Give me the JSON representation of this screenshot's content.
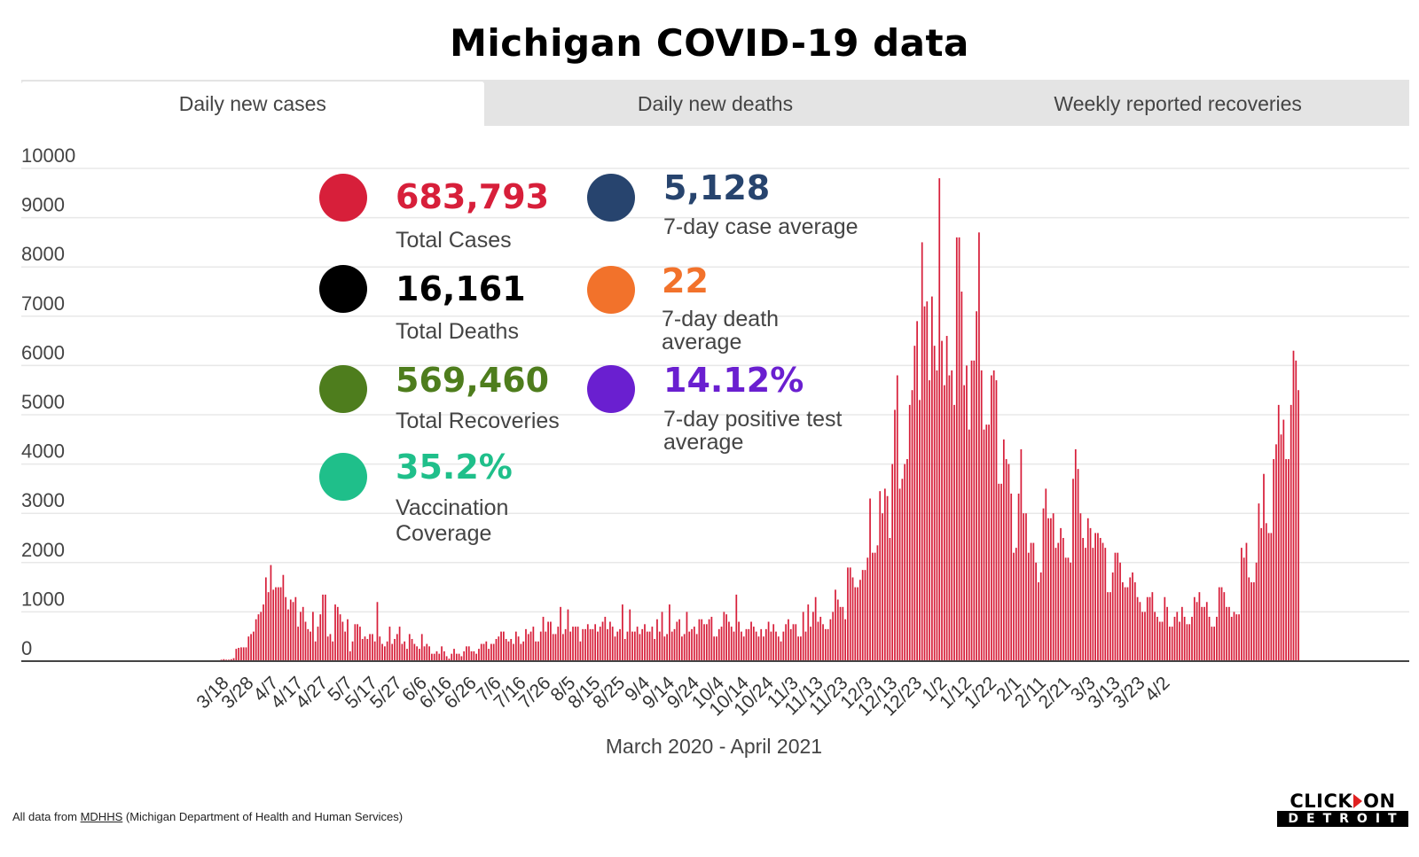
{
  "title": "Michigan COVID-19 data",
  "tabs": [
    {
      "label": "Daily new cases",
      "active": true
    },
    {
      "label": "Daily new deaths",
      "active": false
    },
    {
      "label": "Weekly reported recoveries",
      "active": false
    }
  ],
  "stats": [
    {
      "value": "683,793",
      "label": "Total Cases",
      "color": "#d71f3a"
    },
    {
      "value": "16,161",
      "label": "Total Deaths",
      "color": "#000000"
    },
    {
      "value": "569,460",
      "label": "Total Recoveries",
      "color": "#4e7d1d"
    },
    {
      "value": "35.2%",
      "label_lines": [
        "Vaccination",
        "Coverage"
      ],
      "color": "#1fbf8a"
    },
    {
      "value": "5,128",
      "label": "7-day case average",
      "color": "#27446e"
    },
    {
      "value": "22",
      "label_lines": [
        "7-day death",
        "average"
      ],
      "color": "#f2722b"
    },
    {
      "value": "14.12%",
      "label_lines": [
        "7-day positive test",
        "average"
      ],
      "color": "#6a1fd0"
    }
  ],
  "footer": {
    "prefix": "All data from ",
    "link": "MDHHS",
    "suffix": " (Michigan Department of Health and Human Services)"
  },
  "logo": {
    "top_left": "CLICK",
    "top_right": "ON",
    "bottom": "DETROIT"
  },
  "chart_data": {
    "type": "bar",
    "title": "",
    "xlabel": "March 2020 - April 2021",
    "ylabel": "",
    "ylim": [
      0,
      10000
    ],
    "yticks": [
      0,
      1000,
      2000,
      3000,
      4000,
      5000,
      6000,
      7000,
      8000,
      9000,
      10000
    ],
    "grid": true,
    "bar_color": "#d71f3a",
    "x_start_date": "3/10",
    "xtick_labels": [
      "3/18",
      "3/28",
      "4/7",
      "4/17",
      "4/27",
      "5/7",
      "5/17",
      "5/27",
      "6/6",
      "6/16",
      "6/26",
      "7/6",
      "7/16",
      "7/26",
      "8/5",
      "8/15",
      "8/25",
      "9/4",
      "9/14",
      "9/24",
      "10/4",
      "10/14",
      "10/24",
      "11/3",
      "11/13",
      "11/23",
      "12/3",
      "12/13",
      "12/23",
      "1/2",
      "1/12",
      "1/22",
      "2/1",
      "2/11",
      "2/21",
      "3/3",
      "3/13",
      "3/23",
      "4/2"
    ],
    "xtick_day_offsets": [
      8,
      18,
      28,
      38,
      48,
      58,
      68,
      78,
      88,
      98,
      108,
      118,
      128,
      138,
      148,
      158,
      168,
      178,
      188,
      198,
      208,
      218,
      228,
      238,
      248,
      258,
      268,
      278,
      288,
      298,
      308,
      318,
      328,
      338,
      348,
      358,
      368,
      378,
      388
    ],
    "values": [
      0,
      0,
      0,
      0,
      0,
      0,
      0,
      0,
      0,
      0,
      0,
      30,
      40,
      30,
      30,
      40,
      60,
      250,
      270,
      280,
      280,
      280,
      500,
      550,
      600,
      850,
      950,
      1000,
      1150,
      1700,
      1400,
      1950,
      1450,
      1500,
      1500,
      1500,
      1750,
      1300,
      1050,
      1250,
      1200,
      1300,
      700,
      1000,
      1100,
      800,
      650,
      600,
      1000,
      400,
      700,
      950,
      1350,
      1350,
      500,
      550,
      400,
      1150,
      1100,
      950,
      800,
      600,
      850,
      200,
      400,
      750,
      750,
      700,
      450,
      500,
      450,
      550,
      550,
      400,
      1200,
      500,
      350,
      300,
      400,
      700,
      350,
      450,
      550,
      700,
      350,
      400,
      250,
      550,
      450,
      350,
      300,
      250,
      550,
      300,
      350,
      300,
      150,
      150,
      200,
      150,
      300,
      200,
      100,
      50,
      150,
      250,
      150,
      150,
      100,
      200,
      300,
      300,
      200,
      200,
      150,
      250,
      350,
      350,
      400,
      250,
      350,
      350,
      450,
      500,
      600,
      600,
      450,
      400,
      450,
      350,
      600,
      500,
      350,
      400,
      650,
      550,
      600,
      700,
      400,
      400,
      600,
      900,
      600,
      800,
      800,
      550,
      550,
      700,
      1100,
      550,
      650,
      1050,
      600,
      700,
      700,
      700,
      400,
      650,
      650,
      750,
      650,
      650,
      750,
      600,
      700,
      800,
      900,
      650,
      800,
      700,
      500,
      600,
      650,
      1150,
      450,
      600,
      1050,
      600,
      600,
      700,
      550,
      650,
      750,
      600,
      600,
      700,
      450,
      850,
      600,
      1000,
      500,
      550,
      1150,
      600,
      650,
      800,
      850,
      500,
      550,
      1000,
      600,
      650,
      700,
      550,
      850,
      850,
      750,
      750,
      850,
      900,
      500,
      500,
      650,
      700,
      1000,
      950,
      800,
      700,
      600,
      1350,
      800,
      600,
      500,
      650,
      650,
      800,
      700,
      600,
      500,
      650,
      500,
      650,
      800,
      600,
      750,
      600,
      500,
      400,
      600,
      750,
      850,
      650,
      750,
      750,
      500,
      500,
      1000,
      600,
      1150,
      700,
      1000,
      1300,
      800,
      900,
      750,
      650,
      650,
      850,
      1000,
      1450,
      1250,
      1100,
      1100,
      850,
      1900,
      1900,
      1700,
      1500,
      1500,
      1650,
      1850,
      1850,
      2100,
      3300,
      2200,
      2200,
      2350,
      3450,
      3000,
      3500,
      3350,
      2500,
      4000,
      5100,
      5800,
      3500,
      3700,
      4000,
      4100,
      5200,
      5500,
      6400,
      6900,
      5300,
      8500,
      7200,
      7300,
      5700,
      7400,
      6400,
      5900,
      9800,
      6500,
      5600,
      6600,
      5800,
      5900,
      5200,
      8600,
      8600,
      7500,
      5600,
      6000,
      4700,
      6100,
      6100,
      7100,
      8700,
      5900,
      4700,
      4800,
      4800,
      5800,
      5900,
      5700,
      3600,
      3600,
      4500,
      4100,
      4000,
      3400,
      2200,
      2300,
      3400,
      4300,
      3000,
      3000,
      2200,
      2400,
      2400,
      2000,
      1600,
      1800,
      3100,
      3500,
      2900,
      2900,
      3000,
      2300,
      2400,
      2700,
      2500,
      2100,
      2100,
      2000,
      3700,
      4300,
      3900,
      3000,
      2500,
      2300,
      2900,
      2700,
      2300,
      2600,
      2600,
      2500,
      2400,
      2300,
      1400,
      1400,
      1800,
      2200,
      2200,
      2000,
      1600,
      1500,
      1500,
      1700,
      1800,
      1600,
      1300,
      1200,
      1000,
      1000,
      1300,
      1300,
      1400,
      1000,
      900,
      800,
      800,
      1300,
      1100,
      700,
      700,
      900,
      1000,
      800,
      1100,
      900,
      750,
      750,
      900,
      1300,
      1200,
      1400,
      1100,
      1100,
      1200,
      900,
      700,
      700,
      900,
      1500,
      1500,
      1400,
      1100,
      1100,
      900,
      1000,
      950,
      950,
      2300,
      2100,
      2400,
      1700,
      1600,
      1600,
      2000,
      3200,
      2700,
      3800,
      2800,
      2600,
      2600,
      4100,
      4400,
      5200,
      4600,
      4900,
      4100,
      4100,
      5200,
      6300,
      6100,
      5500
    ]
  }
}
